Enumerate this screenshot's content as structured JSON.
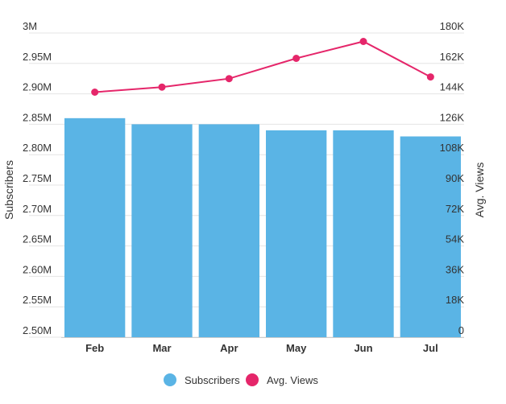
{
  "chart_data": {
    "type": "bar",
    "categories": [
      "Feb",
      "Mar",
      "Apr",
      "May",
      "Jun",
      "Jul"
    ],
    "series": [
      {
        "name": "Subscribers",
        "type": "bar",
        "axis": "left",
        "color": "#5ab4e5",
        "values": [
          2860000,
          2850000,
          2850000,
          2840000,
          2840000,
          2830000
        ]
      },
      {
        "name": "Avg. Views",
        "type": "line",
        "axis": "right",
        "color": "#e5266a",
        "values": [
          145000,
          148000,
          153000,
          165000,
          175000,
          154000
        ]
      }
    ],
    "y_left": {
      "label": "Subscribers",
      "ylim": [
        2500000,
        3000000
      ],
      "ticks": [
        "2.50M",
        "2.55M",
        "2.60M",
        "2.65M",
        "2.70M",
        "2.75M",
        "2.80M",
        "2.85M",
        "2.90M",
        "2.95M",
        "3M"
      ]
    },
    "y_right": {
      "label": "Avg. Views",
      "ylim": [
        0,
        180000
      ],
      "ticks": [
        "0",
        "18K",
        "36K",
        "54K",
        "72K",
        "90K",
        "108K",
        "126K",
        "144K",
        "162K",
        "180K"
      ]
    },
    "grid": true,
    "legend_position": "bottom"
  }
}
